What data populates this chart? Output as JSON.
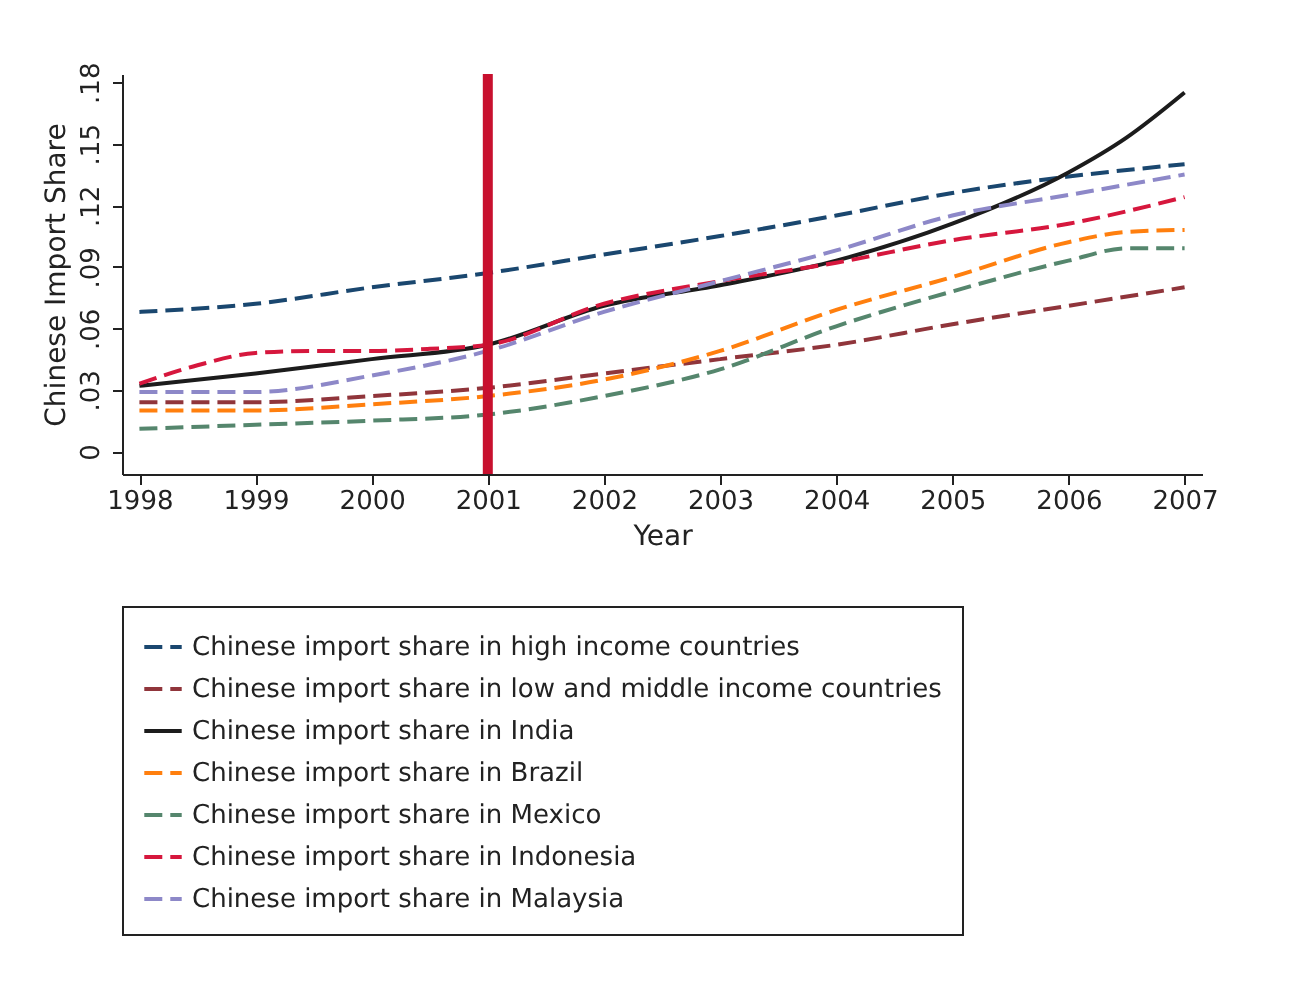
{
  "chart_data": {
    "type": "line",
    "xlabel": "Year",
    "ylabel": "Chinese Import Share",
    "x": [
      1998,
      1999,
      2000,
      2001,
      2002,
      2003,
      2004,
      2005,
      2006,
      2007
    ],
    "series": [
      {
        "name": "Chinese import share in high income countries",
        "color": "#1a476f",
        "line_style": "dashed",
        "values": [
          0.068,
          0.072,
          0.08,
          0.087,
          0.096,
          0.105,
          0.115,
          0.126,
          0.134,
          0.14
        ]
      },
      {
        "name": "Chinese import share in low and middle income countries",
        "color": "#90353b",
        "line_style": "dashed",
        "values": [
          0.024,
          0.024,
          0.027,
          0.031,
          0.038,
          0.045,
          0.052,
          0.062,
          0.071,
          0.08
        ]
      },
      {
        "name": "Chinese import share in India",
        "color": "#1c1c1c",
        "line_style": "solid",
        "x": [
          1998,
          1999,
          2000,
          2001,
          2002,
          2003,
          2004,
          2005,
          2006,
          2006.5,
          2007
        ],
        "values": [
          0.032,
          0.038,
          0.045,
          0.052,
          0.071,
          0.081,
          0.093,
          0.111,
          0.136,
          0.153,
          0.175
        ]
      },
      {
        "name": "Chinese import share in Brazil",
        "color": "#ff7f0e",
        "line_style": "dashed",
        "x": [
          1998,
          1999,
          2000,
          2001,
          2002,
          2003,
          2004,
          2005,
          2006,
          2006.5,
          2007
        ],
        "values": [
          0.02,
          0.02,
          0.023,
          0.027,
          0.035,
          0.049,
          0.069,
          0.085,
          0.102,
          0.107,
          0.108
        ]
      },
      {
        "name": "Chinese import share in Mexico",
        "color": "#55866d",
        "line_style": "dashed",
        "x": [
          1998,
          1999,
          2000,
          2001,
          2002,
          2003,
          2004,
          2005,
          2006,
          2006.5,
          2007
        ],
        "values": [
          0.011,
          0.013,
          0.015,
          0.018,
          0.027,
          0.04,
          0.061,
          0.078,
          0.093,
          0.099,
          0.099
        ]
      },
      {
        "name": "Chinese import share in Indonesia",
        "color": "#d6173d",
        "line_style": "dashed",
        "x": [
          1998,
          1998.5,
          1999,
          1999.5,
          2000,
          2000.5,
          2001,
          2002,
          2003,
          2004,
          2005,
          2006,
          2007
        ],
        "values": [
          0.033,
          0.042,
          0.048,
          0.049,
          0.049,
          0.05,
          0.052,
          0.072,
          0.083,
          0.092,
          0.103,
          0.111,
          0.124
        ]
      },
      {
        "name": "Chinese import share in Malaysia",
        "color": "#8d88c8",
        "line_style": "dashed",
        "values": [
          0.029,
          0.029,
          0.037,
          0.049,
          0.068,
          0.083,
          0.098,
          0.115,
          0.125,
          0.135
        ]
      }
    ],
    "xlim": [
      1997.85,
      2007.15
    ],
    "xticks": [
      1998,
      1999,
      2000,
      2001,
      2002,
      2003,
      2004,
      2005,
      2006,
      2007
    ],
    "ylim": [
      -0.011,
      0.184
    ],
    "yticks": [
      0,
      {
        "value": 0.03,
        "label": ".03"
      },
      {
        "value": 0.06,
        "label": ".06"
      },
      {
        "value": 0.09,
        "label": ".09"
      },
      {
        "value": 0.12,
        "label": ".12"
      },
      {
        "value": 0.15,
        "label": ".15"
      },
      {
        "value": 0.18,
        "label": ".18"
      }
    ],
    "ref_lines": [
      {
        "axis": "x",
        "value": 2001,
        "color": "#c8102e"
      }
    ],
    "grid": false,
    "legend": "bottom",
    "marker": "none"
  }
}
